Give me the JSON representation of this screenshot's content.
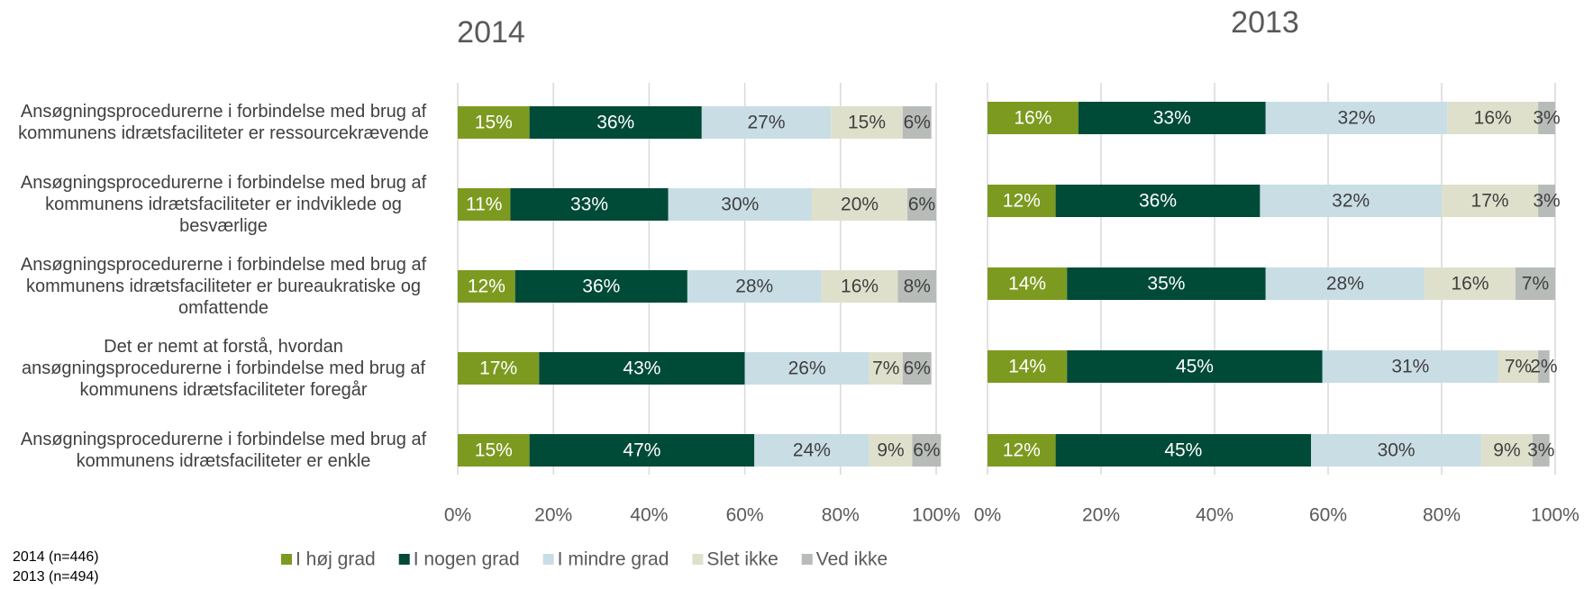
{
  "chart_data": [
    {
      "type": "bar",
      "title": "2014",
      "categories": [
        "Ansøgningsprocedurerne i forbindelse med brug af kommunens idrætsfaciliteter er ressourcekrævende",
        "Ansøgningsprocedurerne i forbindelse med brug af kommunens idrætsfaciliteter er indviklede og besværlige",
        "Ansøgningsprocedurerne i forbindelse med brug af kommunens idrætsfaciliteter er bureaukratiske og omfattende",
        "Det er nemt at forstå, hvordan ansøgningsprocedurerne i forbindelse med brug af kommunens idrætsfaciliteter foregår",
        "Ansøgningsprocedurerne i forbindelse med brug af kommunens idrætsfaciliteter er enkle"
      ],
      "series": [
        {
          "name": "I høj grad",
          "color": "#7d9a20",
          "values": [
            15,
            11,
            12,
            17,
            15
          ],
          "value_labels": [
            "15%",
            "11%",
            "12%",
            "17%",
            "15%"
          ]
        },
        {
          "name": "I nogen grad",
          "color": "#004a38",
          "values": [
            36,
            33,
            36,
            43,
            47
          ],
          "value_labels": [
            "36%",
            "33%",
            "36%",
            "43%",
            "47%"
          ]
        },
        {
          "name": "I mindre grad",
          "color": "#c9dde5",
          "values": [
            27,
            30,
            28,
            26,
            24
          ],
          "value_labels": [
            "27%",
            "30%",
            "28%",
            "26%",
            "24%"
          ]
        },
        {
          "name": "Slet ikke",
          "color": "#dfe0cc",
          "values": [
            15,
            20,
            16,
            7,
            9
          ],
          "value_labels": [
            "15%",
            "20%",
            "16%",
            "7%",
            "9%"
          ]
        },
        {
          "name": "Ved ikke",
          "color": "#b8bcb9",
          "values": [
            6,
            6,
            8,
            6,
            6
          ],
          "value_labels": [
            "6%",
            "6%",
            "8%",
            "6%",
            "6%"
          ]
        }
      ],
      "xlim": [
        0,
        100
      ],
      "xticks": [
        {
          "value": 0,
          "label": "0%"
        },
        {
          "value": 20,
          "label": "20%"
        },
        {
          "value": 40,
          "label": "40%"
        },
        {
          "value": 60,
          "label": "60%"
        },
        {
          "value": 80,
          "label": "80%"
        },
        {
          "value": 100,
          "label": "100%"
        }
      ],
      "grid": true,
      "note": "2014 (n=446)"
    },
    {
      "type": "bar",
      "title": "2013",
      "categories": [
        null,
        null,
        null,
        null,
        null
      ],
      "series": [
        {
          "color": "#7d9a20",
          "values": [
            16,
            12,
            14,
            14,
            12
          ],
          "value_labels": [
            "16%",
            "12%",
            "14%",
            "14%",
            "12%"
          ]
        },
        {
          "color": "#004a38",
          "values": [
            33,
            36,
            35,
            45,
            45
          ],
          "value_labels": [
            "33%",
            "36%",
            "35%",
            "45%",
            "45%"
          ]
        },
        {
          "color": "#c9dde5",
          "values": [
            32,
            32,
            28,
            31,
            30
          ],
          "value_labels": [
            "32%",
            "32%",
            "28%",
            "31%",
            "30%"
          ]
        },
        {
          "color": "#dfe0cc",
          "values": [
            16,
            17,
            16,
            7,
            9
          ],
          "value_labels": [
            "16%",
            "17%",
            "16%",
            "7%",
            "9%"
          ]
        },
        {
          "color": "#b8bcb9",
          "values": [
            3,
            3,
            7,
            2,
            3
          ],
          "value_labels": [
            "3%",
            "3%",
            "7%",
            "2%",
            "3%"
          ]
        }
      ],
      "xlim": [
        0,
        100
      ],
      "xticks": [
        {
          "value": 0,
          "label": "0%"
        },
        {
          "value": 20,
          "label": "20%"
        },
        {
          "value": 40,
          "label": "40%"
        },
        {
          "value": 60,
          "label": "60%"
        },
        {
          "value": 80,
          "label": "80%"
        },
        {
          "value": 100,
          "label": "100%"
        }
      ],
      "grid": true,
      "note": "2013 (n=494)"
    }
  ]
}
